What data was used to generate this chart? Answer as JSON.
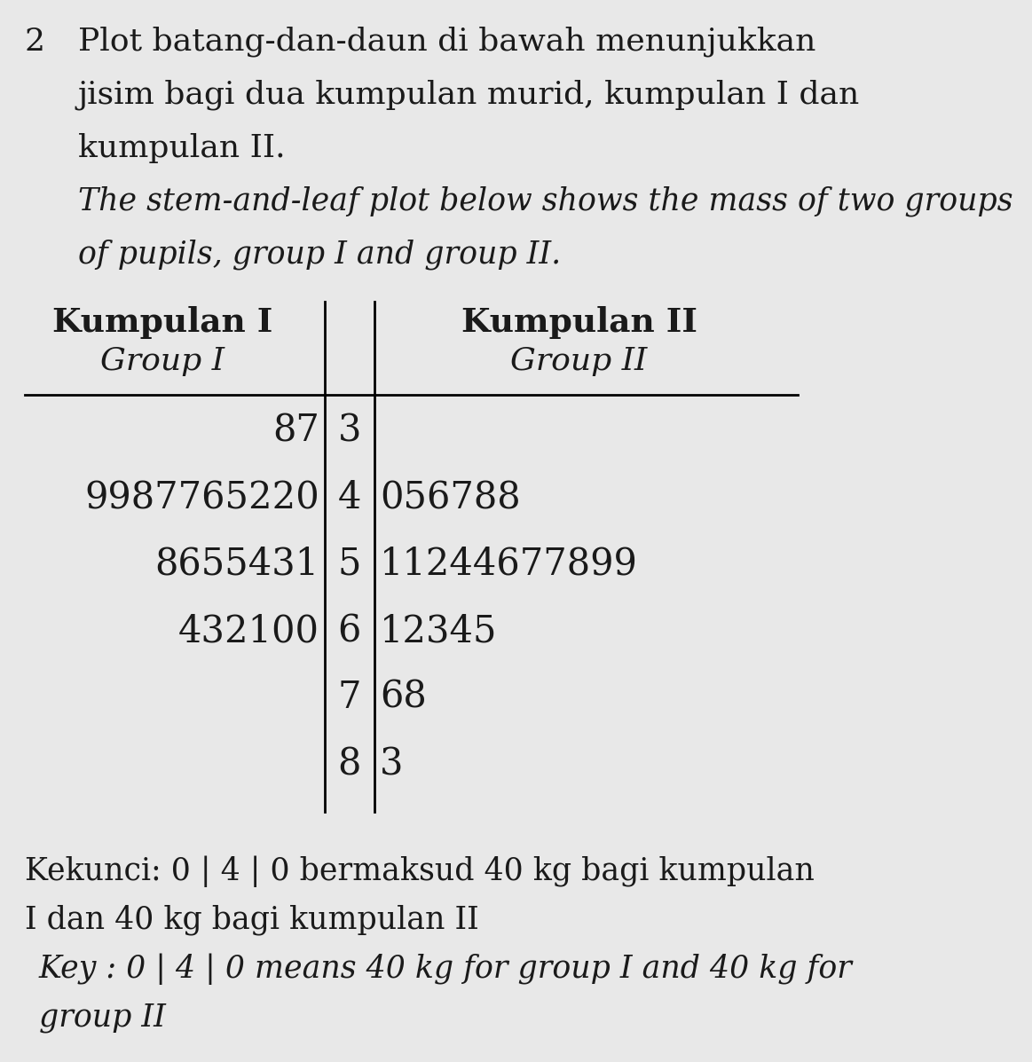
{
  "header_left_bold": "Kumpulan I",
  "header_left_italic": "Group I",
  "header_right_bold": "Kumpulan II",
  "header_right_italic": "Group II",
  "stems": [
    "3",
    "4",
    "5",
    "6",
    "7",
    "8"
  ],
  "leaves_left": [
    "87",
    "9987765220",
    "8655431",
    "432100",
    "",
    ""
  ],
  "leaves_right": [
    "",
    "056788",
    "11244677899",
    "12345",
    "68",
    "3"
  ],
  "title_prefix": "2",
  "title_l1": "Plot batang-dan-daun di bawah menunjukkan",
  "title_l2": "jisim bagi dua kumpulan murid, kumpulan I dan",
  "title_l3": "kumpulan II.",
  "title_l4_italic": "The stem-and-leaf plot below shows the mass of two groups",
  "title_l5_italic": "of pupils, group I and group II.",
  "key_l1": "Kekunci: 0 | 4 | 0 bermaksud 40 kg bagi kumpulan",
  "key_l2": "I dan 40 kg bagi kumpulan II",
  "key_l3_italic": "Key : 0 | 4 | 0 means 40 kg for group I and 40 kg for",
  "key_l4_italic": "group II",
  "background_color": "#e8e8e8",
  "text_color": "#1a1a1a",
  "title_fontsize": 26,
  "italic_fontsize": 25,
  "header_bold_fontsize": 27,
  "header_italic_fontsize": 26,
  "data_fontsize": 30,
  "key_fontsize": 25
}
